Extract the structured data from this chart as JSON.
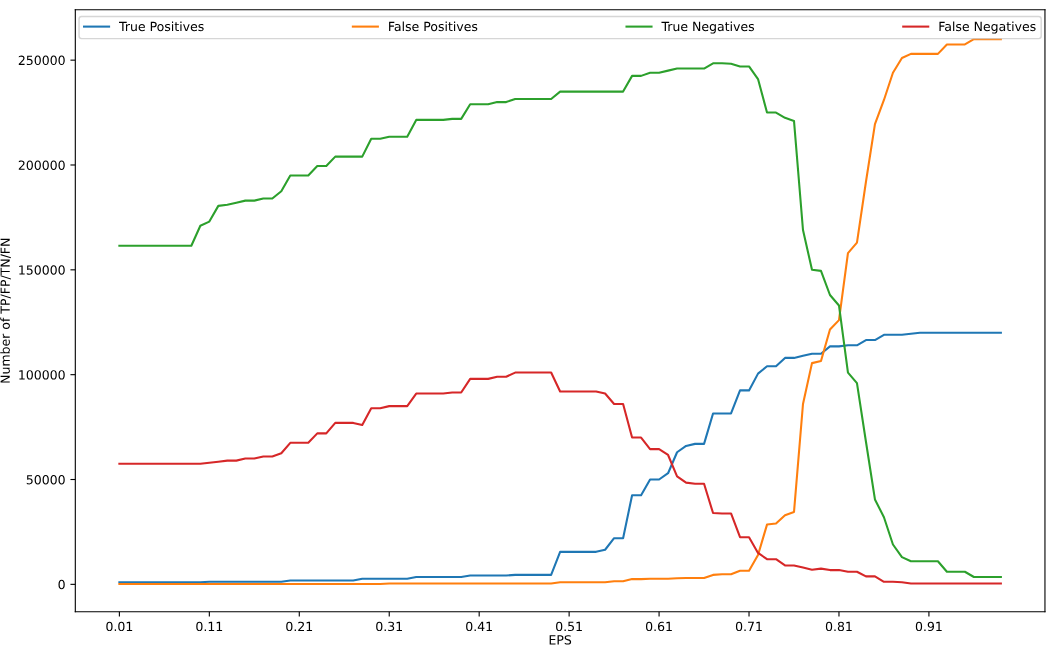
{
  "chart_data": {
    "type": "line",
    "xlabel": "EPS",
    "ylabel": "Number of TP/FP/TN/FN",
    "x": [
      0.01,
      0.02,
      0.03,
      0.04,
      0.05,
      0.06,
      0.07,
      0.08,
      0.09,
      0.1,
      0.11,
      0.12,
      0.13,
      0.14,
      0.15,
      0.16,
      0.17,
      0.18,
      0.19,
      0.2,
      0.21,
      0.22,
      0.23,
      0.24,
      0.25,
      0.26,
      0.27,
      0.28,
      0.29,
      0.3,
      0.31,
      0.32,
      0.33,
      0.34,
      0.35,
      0.36,
      0.37,
      0.38,
      0.39,
      0.4,
      0.41,
      0.42,
      0.43,
      0.44,
      0.45,
      0.46,
      0.47,
      0.48,
      0.49,
      0.5,
      0.51,
      0.52,
      0.53,
      0.54,
      0.55,
      0.56,
      0.57,
      0.58,
      0.59,
      0.6,
      0.61,
      0.62,
      0.63,
      0.64,
      0.65,
      0.66,
      0.67,
      0.68,
      0.69,
      0.7,
      0.71,
      0.72,
      0.73,
      0.74,
      0.75,
      0.76,
      0.77,
      0.78,
      0.79,
      0.8,
      0.81,
      0.82,
      0.83,
      0.84,
      0.85,
      0.86,
      0.87,
      0.88,
      0.89,
      0.9,
      0.91,
      0.92,
      0.93,
      0.94,
      0.95,
      0.96,
      0.97,
      0.98,
      0.99
    ],
    "series": [
      {
        "name": "True Positives",
        "color": "#1f77b4",
        "values": [
          1000,
          1000,
          1000,
          1000,
          1000,
          1000,
          1000,
          1000,
          1000,
          1000,
          1200,
          1200,
          1200,
          1200,
          1200,
          1200,
          1200,
          1200,
          1200,
          1800,
          1800,
          1800,
          1800,
          1800,
          1800,
          1800,
          1800,
          2700,
          2700,
          2700,
          2700,
          2700,
          2700,
          3500,
          3500,
          3500,
          3500,
          3500,
          3500,
          4200,
          4200,
          4200,
          4200,
          4200,
          4500,
          4500,
          4500,
          4500,
          4500,
          15500,
          15500,
          15500,
          15500,
          15500,
          16500,
          22000,
          22000,
          42500,
          42500,
          50000,
          50000,
          53000,
          63000,
          66000,
          67000,
          67000,
          81500,
          81500,
          81500,
          92500,
          92500,
          100500,
          104000,
          104000,
          108000,
          108000,
          109000,
          110000,
          110000,
          113500,
          113500,
          114000,
          114000,
          116500,
          116500,
          119000,
          119000,
          119000,
          119500,
          120000,
          120000,
          120000,
          120000,
          120000,
          120000,
          120000,
          120000,
          120000,
          120000
        ]
      },
      {
        "name": "False Positives",
        "color": "#ff7f0e",
        "values": [
          200,
          200,
          200,
          200,
          200,
          200,
          200,
          200,
          200,
          200,
          200,
          200,
          200,
          200,
          200,
          200,
          200,
          200,
          200,
          200,
          200,
          200,
          200,
          200,
          200,
          200,
          200,
          200,
          200,
          200,
          400,
          400,
          400,
          400,
          400,
          400,
          400,
          400,
          400,
          400,
          400,
          400,
          400,
          400,
          400,
          400,
          400,
          400,
          400,
          1000,
          1000,
          1000,
          1000,
          1000,
          1000,
          1500,
          1500,
          2500,
          2500,
          2700,
          2700,
          2700,
          2900,
          3000,
          3000,
          3000,
          4500,
          4800,
          4800,
          6500,
          6500,
          14000,
          28500,
          29000,
          33000,
          34500,
          86000,
          105500,
          106500,
          121500,
          126000,
          158000,
          163000,
          192000,
          219500,
          231000,
          244000,
          251000,
          253000,
          253000,
          253000,
          253000,
          257500,
          257500,
          257500,
          260000,
          260000,
          260000,
          260000
        ]
      },
      {
        "name": "True Negatives",
        "color": "#2ca02c",
        "values": [
          161500,
          161500,
          161500,
          161500,
          161500,
          161500,
          161500,
          161500,
          161500,
          171000,
          173000,
          180500,
          181000,
          182000,
          183000,
          183000,
          184000,
          184000,
          187500,
          195000,
          195000,
          195000,
          199500,
          199500,
          204000,
          204000,
          204000,
          204000,
          212500,
          212500,
          213500,
          213500,
          213500,
          221500,
          221500,
          221500,
          221500,
          222000,
          222000,
          229000,
          229000,
          229000,
          230000,
          230000,
          231500,
          231500,
          231500,
          231500,
          231500,
          235000,
          235000,
          235000,
          235000,
          235000,
          235000,
          235000,
          235000,
          242500,
          242500,
          244000,
          244000,
          245000,
          246000,
          246000,
          246000,
          246000,
          248500,
          248500,
          248300,
          247000,
          247000,
          241000,
          225000,
          225000,
          222500,
          221000,
          169000,
          150000,
          149500,
          138000,
          133000,
          101000,
          96000,
          68000,
          40500,
          32000,
          19000,
          13000,
          11000,
          11000,
          11000,
          11000,
          6000,
          6000,
          6000,
          3500,
          3500,
          3500,
          3500
        ]
      },
      {
        "name": "False Negatives",
        "color": "#d62728",
        "values": [
          57500,
          57500,
          57500,
          57500,
          57500,
          57500,
          57500,
          57500,
          57500,
          57500,
          58000,
          58500,
          59000,
          59000,
          60000,
          60000,
          61000,
          61000,
          62500,
          67500,
          67500,
          67500,
          72000,
          72000,
          77000,
          77000,
          77000,
          76000,
          84000,
          84000,
          85000,
          85000,
          85000,
          91000,
          91000,
          91000,
          91000,
          91500,
          91500,
          98000,
          98000,
          98000,
          99000,
          99000,
          101000,
          101000,
          101000,
          101000,
          101000,
          92000,
          92000,
          92000,
          92000,
          92000,
          91000,
          86000,
          86000,
          70000,
          70000,
          64500,
          64500,
          61700,
          51500,
          48500,
          48000,
          48000,
          34000,
          33800,
          33800,
          22500,
          22500,
          15000,
          12000,
          12000,
          9000,
          9000,
          8000,
          7000,
          7500,
          6800,
          6800,
          6000,
          6000,
          3800,
          3800,
          1200,
          1200,
          1000,
          400,
          400,
          400,
          400,
          400,
          400,
          400,
          400,
          400,
          400,
          400
        ]
      }
    ],
    "xlim": [
      -0.039,
      1.039
    ],
    "ylim": [
      -13050,
      274050
    ],
    "xticks": [
      0.01,
      0.11,
      0.21,
      0.31,
      0.41,
      0.51,
      0.61,
      0.71,
      0.81,
      0.91
    ],
    "yticks": [
      0,
      50000,
      100000,
      150000,
      200000,
      250000
    ],
    "legend": "top",
    "grid": false
  }
}
